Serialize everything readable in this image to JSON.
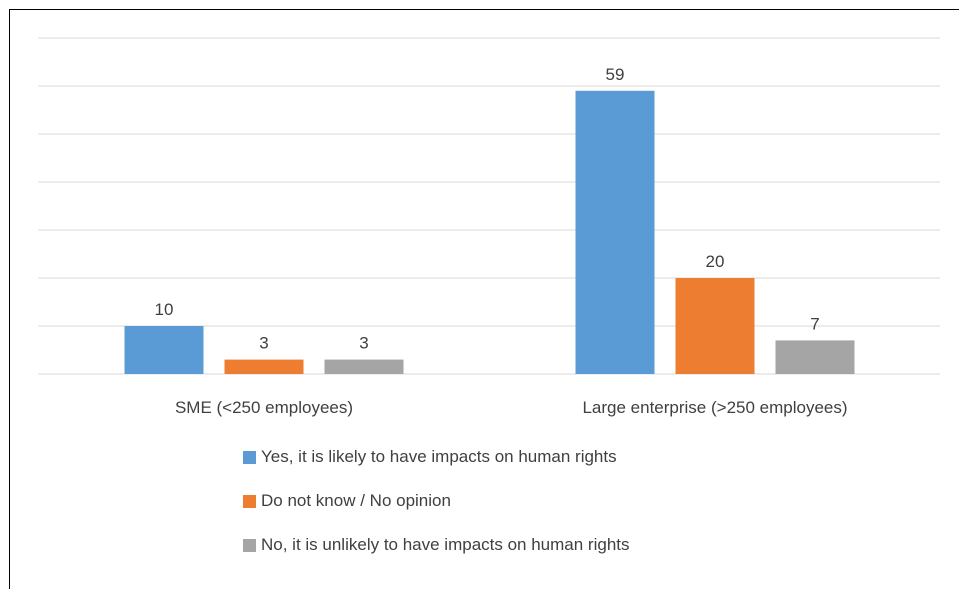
{
  "chart_data": {
    "type": "bar",
    "categories": [
      "SME (<250 employees)",
      "Large enterprise (>250 employees)"
    ],
    "series": [
      {
        "name": "Yes, it is likely to have impacts on human rights",
        "values": [
          10,
          59
        ],
        "color": "#5B9BD5"
      },
      {
        "name": "Do not know / No opinion",
        "values": [
          3,
          20
        ],
        "color": "#ED7D31"
      },
      {
        "name": "No, it is unlikely to have impacts on human rights",
        "values": [
          3,
          7
        ],
        "color": "#A5A5A5"
      }
    ],
    "ylim": [
      0,
      70
    ],
    "gridlines": true,
    "data_labels": true,
    "legend_position": "bottom"
  }
}
